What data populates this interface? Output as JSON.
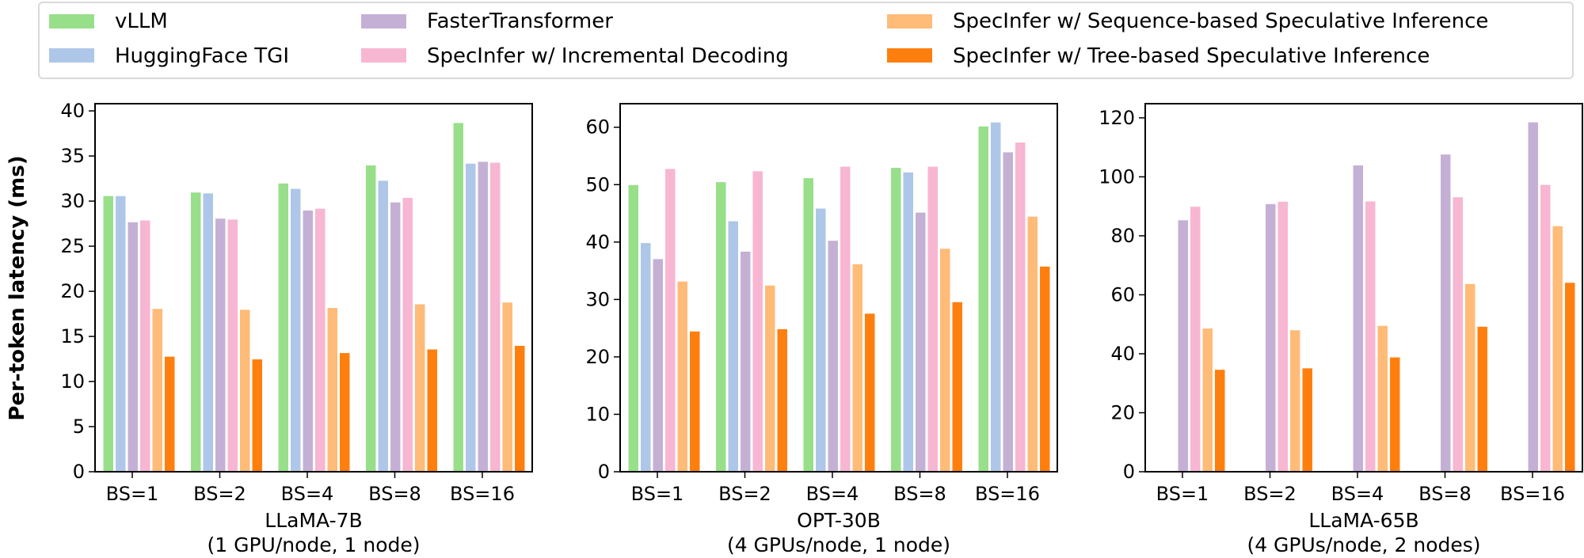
{
  "chart_data": {
    "type": "bar",
    "ylabel": "Per-token latency (ms)",
    "legend": {
      "placement": "top",
      "entries": [
        "vLLM",
        "HuggingFace TGI",
        "FasterTransformer",
        "SpecInfer w/ Incremental Decoding",
        "SpecInfer w/ Sequence-based Speculative Inference",
        "SpecInfer w/ Tree-based Speculative Inference"
      ]
    },
    "colors": [
      "#98df8a",
      "#aec7e8",
      "#c5b0d5",
      "#f7b6d2",
      "#ffbb78",
      "#ff7f0e"
    ],
    "grid": false,
    "panels": [
      {
        "title_line1": "LLaMA-7B",
        "title_line2": "(1 GPU/node, 1 node)",
        "categories": [
          "BS=1",
          "BS=2",
          "BS=4",
          "BS=8",
          "BS=16"
        ],
        "ylim": [
          0,
          40.8
        ],
        "yticks": [
          0,
          5,
          10,
          15,
          20,
          25,
          30,
          35,
          40
        ],
        "series": [
          {
            "name": "vLLM",
            "values": [
              30.6,
              31.0,
              32.0,
              34.0,
              38.7
            ]
          },
          {
            "name": "HuggingFace TGI",
            "values": [
              30.6,
              30.9,
              31.4,
              32.3,
              34.2
            ]
          },
          {
            "name": "FasterTransformer",
            "values": [
              27.7,
              28.1,
              29.0,
              29.9,
              34.4
            ]
          },
          {
            "name": "SpecInfer w/ Incremental Decoding",
            "values": [
              27.9,
              28.0,
              29.2,
              30.4,
              34.3
            ]
          },
          {
            "name": "SpecInfer w/ Sequence-based Speculative Inference",
            "values": [
              18.1,
              18.0,
              18.2,
              18.6,
              18.8
            ]
          },
          {
            "name": "SpecInfer w/ Tree-based Speculative Inference",
            "values": [
              12.8,
              12.5,
              13.2,
              13.6,
              14.0
            ]
          }
        ]
      },
      {
        "title_line1": "OPT-30B",
        "title_line2": "(4 GPUs/node, 1 node)",
        "categories": [
          "BS=1",
          "BS=2",
          "BS=4",
          "BS=8",
          "BS=16"
        ],
        "ylim": [
          0,
          64.1
        ],
        "yticks": [
          0,
          10,
          20,
          30,
          40,
          50,
          60
        ],
        "series": [
          {
            "name": "vLLM",
            "values": [
              50.0,
              50.5,
              51.2,
              53.0,
              60.2
            ]
          },
          {
            "name": "HuggingFace TGI",
            "values": [
              39.9,
              43.7,
              45.9,
              52.2,
              60.9
            ]
          },
          {
            "name": "FasterTransformer",
            "values": [
              37.1,
              38.4,
              40.3,
              45.2,
              55.7
            ]
          },
          {
            "name": "SpecInfer w/ Incremental Decoding",
            "values": [
              52.8,
              52.4,
              53.2,
              53.2,
              57.4
            ]
          },
          {
            "name": "SpecInfer w/ Sequence-based Speculative Inference",
            "values": [
              33.2,
              32.5,
              36.2,
              38.9,
              44.5
            ]
          },
          {
            "name": "SpecInfer w/ Tree-based Speculative Inference",
            "values": [
              24.5,
              24.9,
              27.6,
              29.6,
              35.8
            ]
          }
        ]
      },
      {
        "title_line1": "LLaMA-65B",
        "title_line2": "(4 GPUs/node, 2 nodes)",
        "categories": [
          "BS=1",
          "BS=2",
          "BS=4",
          "BS=8",
          "BS=16"
        ],
        "ylim": [
          0,
          124.8
        ],
        "yticks": [
          0,
          20,
          40,
          60,
          80,
          100,
          120
        ],
        "series": [
          {
            "name": "vLLM",
            "values": [
              null,
              null,
              null,
              null,
              null
            ]
          },
          {
            "name": "HuggingFace TGI",
            "values": [
              null,
              null,
              null,
              null,
              null
            ]
          },
          {
            "name": "FasterTransformer",
            "values": [
              85.4,
              90.9,
              104.0,
              107.7,
              118.6
            ]
          },
          {
            "name": "SpecInfer w/ Incremental Decoding",
            "values": [
              90.0,
              91.7,
              91.8,
              93.2,
              97.4
            ]
          },
          {
            "name": "SpecInfer w/ Sequence-based Speculative Inference",
            "values": [
              48.7,
              48.1,
              49.6,
              63.8,
              83.4
            ]
          },
          {
            "name": "SpecInfer w/ Tree-based Speculative Inference",
            "values": [
              34.7,
              35.2,
              38.9,
              49.3,
              64.2
            ]
          }
        ]
      }
    ]
  }
}
